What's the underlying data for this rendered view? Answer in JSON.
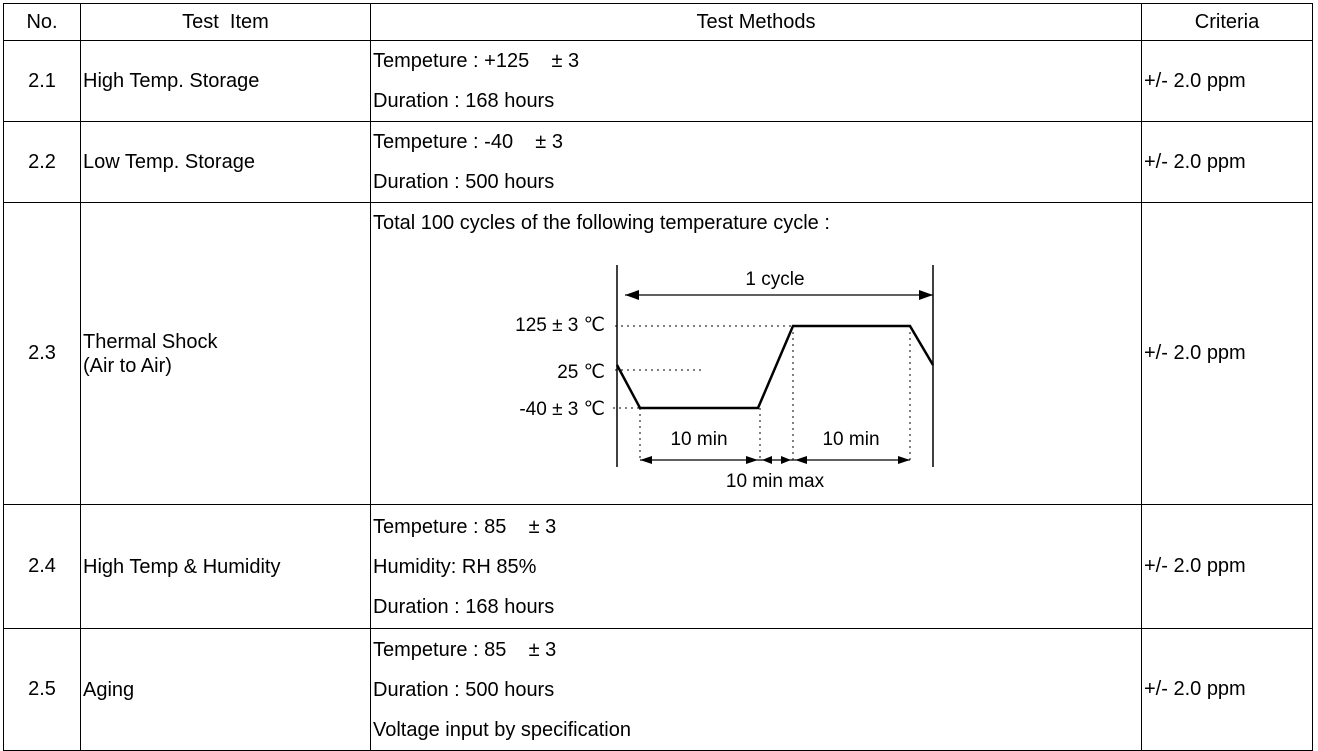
{
  "table": {
    "header": [
      "No.",
      "Test  Item",
      "Test Methods",
      "Criteria"
    ],
    "rows": [
      {
        "no": "2.1",
        "item": [
          "High Temp. Storage"
        ],
        "methods": [
          "Tempeture : +125    ± 3",
          "Duration : 168 hours"
        ],
        "criteria": "+/- 2.0 ppm"
      },
      {
        "no": "2.2",
        "item": [
          "Low Temp. Storage"
        ],
        "methods": [
          "Tempeture : -40    ± 3",
          "Duration : 500 hours"
        ],
        "criteria": "+/- 2.0 ppm"
      },
      {
        "no": "2.3",
        "item": [
          "Thermal Shock",
          "(Air to Air)"
        ],
        "methods": [
          "Total 100 cycles of the following temperature cycle :"
        ],
        "criteria": "+/- 2.0 ppm"
      },
      {
        "no": "2.4",
        "item": [
          "High Temp & Humidity"
        ],
        "methods": [
          "Tempeture : 85    ± 3",
          "Humidity: RH 85%",
          "Duration : 168 hours"
        ],
        "criteria": "+/- 2.0 ppm"
      },
      {
        "no": "2.5",
        "item": [
          "Aging"
        ],
        "methods": [
          "Tempeture : 85    ± 3",
          "Duration : 500 hours",
          "Voltage input by specification"
        ],
        "criteria": "+/- 2.0 ppm"
      }
    ]
  },
  "diagram": {
    "cycle_label": "1  cycle",
    "high_label": "125 ± 3 ℃",
    "room_label": "25 ℃",
    "low_label": "-40 ± 3 ℃",
    "low_dwell_label": "10 min",
    "high_dwell_label": "10 min",
    "transition_label": "10 min  max"
  }
}
